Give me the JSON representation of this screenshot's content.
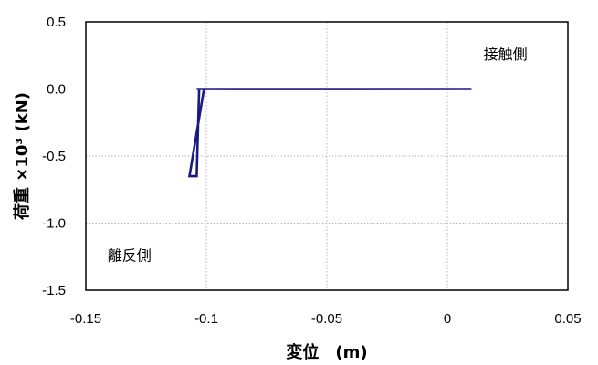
{
  "chart_data": {
    "type": "line",
    "title": "",
    "xlabel": "変位　(m)",
    "ylabel": "荷重 ×10³ (kN)",
    "xlim": [
      -0.15,
      0.05
    ],
    "ylim": [
      -1.5,
      0.5
    ],
    "xticks": [
      -0.15,
      -0.1,
      -0.05,
      0,
      0.05
    ],
    "xtick_labels": [
      "-0.15",
      "-0.1",
      "-0.05",
      "0",
      "0.05"
    ],
    "yticks": [
      0.5,
      0.0,
      -0.5,
      -1.0,
      -1.5
    ],
    "ytick_labels": [
      "0.5",
      "0.0",
      "-0.5",
      "-1.0",
      "-1.5"
    ],
    "grid": true,
    "line_color": "#1a1a80",
    "series": [
      {
        "x": [
          0.01,
          -0.041,
          -0.101,
          -0.107,
          -0.104,
          -0.103,
          -0.104,
          -0.041,
          0.01
        ],
        "y": [
          0.0,
          0.0,
          0.0,
          -0.65,
          -0.65,
          0.0,
          0.0,
          -0.001,
          0.0
        ]
      }
    ],
    "annotations": [
      {
        "text": "接触側",
        "x": 0.015,
        "y": 0.22
      },
      {
        "text": "離反側",
        "x": -0.141,
        "y": -1.28
      }
    ]
  }
}
